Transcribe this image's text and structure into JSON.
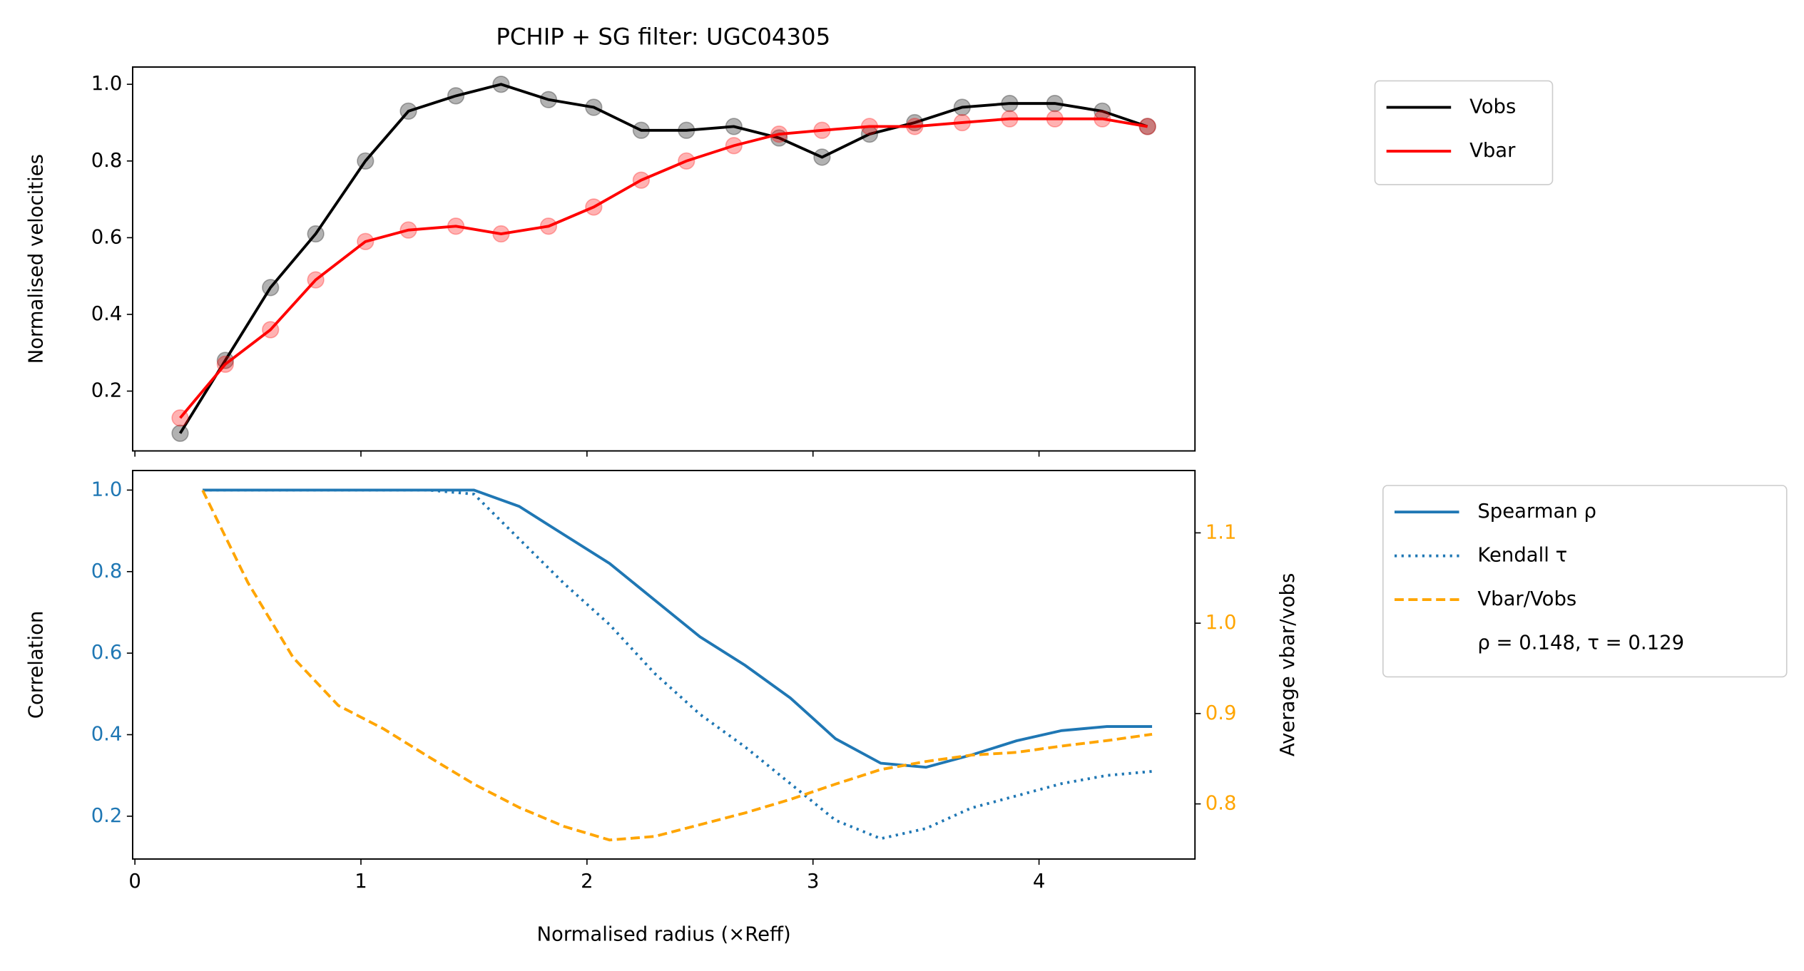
{
  "chart_data": [
    {
      "type": "line",
      "title": "PCHIP + SG filter: UGC04305",
      "ylabel": "Normalised velocities",
      "x": [
        0.2,
        0.4,
        0.6,
        0.8,
        1.02,
        1.21,
        1.42,
        1.62,
        1.83,
        2.03,
        2.24,
        2.44,
        2.65,
        2.85,
        3.04,
        3.25,
        3.45,
        3.66,
        3.87,
        4.07,
        4.28,
        4.48
      ],
      "series": [
        {
          "name": "Vobs",
          "color": "#000000",
          "linestyle": "solid",
          "markers": true,
          "values": [
            0.09,
            0.28,
            0.47,
            0.61,
            0.8,
            0.93,
            0.97,
            1.0,
            0.96,
            0.94,
            0.88,
            0.88,
            0.89,
            0.86,
            0.81,
            0.87,
            0.9,
            0.94,
            0.95,
            0.95,
            0.93,
            0.89
          ]
        },
        {
          "name": "Vbar",
          "color": "#ff0000",
          "linestyle": "solid",
          "markers": true,
          "values": [
            0.13,
            0.27,
            0.36,
            0.49,
            0.59,
            0.62,
            0.63,
            0.61,
            0.63,
            0.68,
            0.75,
            0.8,
            0.84,
            0.87,
            0.88,
            0.89,
            0.89,
            0.9,
            0.91,
            0.91,
            0.91,
            0.89
          ]
        }
      ],
      "xlim": [
        -0.01,
        4.69
      ],
      "xticks": [
        0,
        1,
        2,
        3,
        4
      ],
      "ylim": [
        0.044,
        1.045
      ],
      "yticks": [
        0.2,
        0.4,
        0.6,
        0.8,
        {
          "value": 1.0,
          "label": "1.0"
        }
      ],
      "legend": "outside right"
    },
    {
      "type": "line",
      "xlabel": "Normalised radius (×Reff)",
      "ylabel": "Correlation",
      "y2label": "Average vbar/vobs",
      "x": [
        0.3,
        0.5,
        0.7,
        0.9,
        1.1,
        1.3,
        1.5,
        1.7,
        1.9,
        2.1,
        2.3,
        2.5,
        2.7,
        2.9,
        3.1,
        3.3,
        3.5,
        3.7,
        3.9,
        4.1,
        4.3,
        4.5
      ],
      "series": [
        {
          "name": "Spearman ρ",
          "color": "#1f77b4",
          "linestyle": "solid",
          "values": [
            1,
            1,
            1,
            1,
            1,
            1,
            1,
            0.96,
            0.89,
            0.82,
            0.73,
            0.64,
            0.57,
            0.49,
            0.39,
            0.33,
            0.32,
            0.35,
            0.385,
            0.41,
            0.42,
            0.42
          ]
        },
        {
          "name": "Kendall τ",
          "color": "#1f77b4",
          "linestyle": "dotted",
          "values": [
            1,
            1,
            1,
            1,
            1,
            1,
            0.99,
            0.88,
            0.77,
            0.67,
            0.55,
            0.45,
            0.37,
            0.28,
            0.19,
            0.145,
            0.17,
            0.22,
            0.25,
            0.28,
            0.3,
            0.31
          ]
        },
        {
          "name": "Vbar/Vobs",
          "color": "#ffa500",
          "linestyle": "dashed",
          "axis": "y2",
          "values": [
            1.147,
            1.045,
            0.962,
            0.909,
            0.883,
            0.852,
            0.822,
            0.796,
            0.775,
            0.76,
            0.764,
            0.777,
            0.79,
            0.805,
            0.822,
            0.838,
            0.847,
            0.854,
            0.857,
            0.864,
            0.87,
            0.877
          ]
        }
      ],
      "legend_note": "ρ = 0.148, τ = 0.129",
      "xlim": [
        -0.01,
        4.69
      ],
      "xticks": [
        0,
        1,
        2,
        3,
        4
      ],
      "ylim": [
        0.095,
        1.048
      ],
      "yticks": [
        0.2,
        0.4,
        0.6,
        0.8,
        {
          "value": 1.0,
          "label": "1.0"
        }
      ],
      "ytick_color": "#1f77b4",
      "y2lim": [
        0.739,
        1.169
      ],
      "y2ticks": [
        0.8,
        0.9,
        {
          "value": 1.0,
          "label": "1.0"
        },
        1.1
      ],
      "y2tick_color": "#ffa500",
      "legend": "outside right"
    }
  ]
}
